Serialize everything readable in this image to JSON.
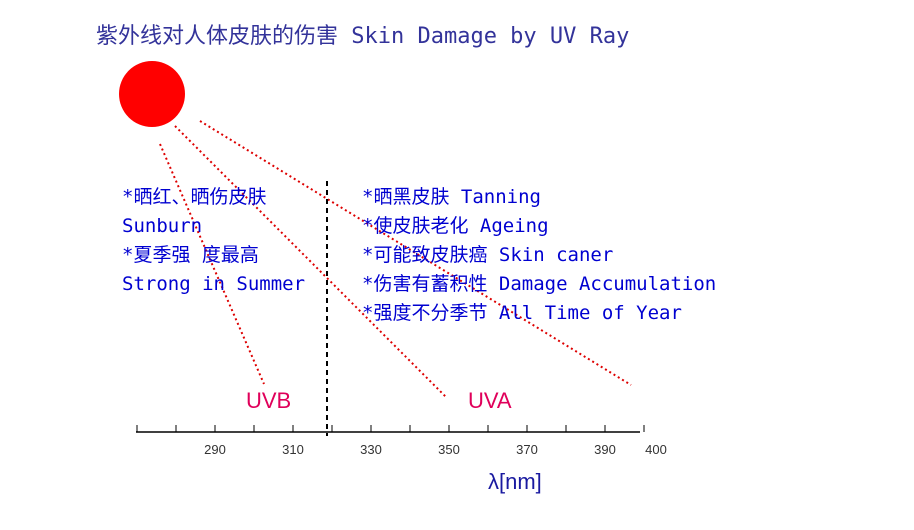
{
  "title": "紫外线对人体皮肤的伤害 Skin Damage by UV Ray",
  "uvb": {
    "label": "UVB",
    "lines": [
      "*晒红、晒伤皮肤",
      " Sunburn",
      "*夏季强 度最高",
      "Strong in Summer"
    ]
  },
  "uva": {
    "label": "UVA",
    "lines": [
      "*晒黑皮肤 Tanning",
      "*使皮肤老化 Ageing",
      "*可能致皮肤癌 Skin caner",
      "*伤害有蓄积性 Damage Accumulation",
      "*强度不分季节 All Time of Year"
    ]
  },
  "axis": {
    "ticks": [
      "290",
      "310",
      "330",
      "350",
      "370",
      "390",
      "400"
    ],
    "unit": "λ[nm]"
  },
  "colors": {
    "sun": "#ff0000",
    "rays": "#dd0000",
    "band_label": "#e0005a",
    "text": "#0000d0"
  }
}
